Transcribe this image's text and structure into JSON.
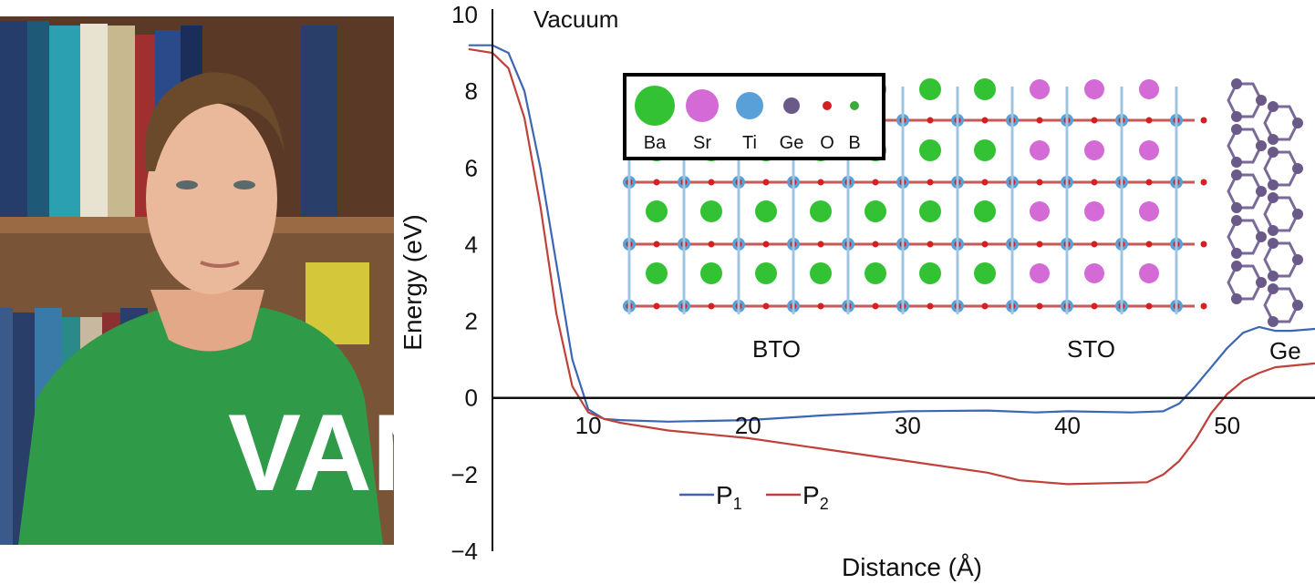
{
  "photo": {
    "shirt_lettering": "VAN"
  },
  "chart_data": {
    "type": "line",
    "title": "",
    "xlabel": "Distance (Å)",
    "ylabel": "Energy (eV)",
    "xlim": [
      0,
      55.5
    ],
    "ylim": [
      -4,
      10
    ],
    "xticks": [
      10,
      20,
      30,
      40,
      50
    ],
    "yticks": [
      -4,
      -2,
      0,
      2,
      4,
      6,
      8,
      10
    ],
    "ytick_labels": [
      "−4",
      "−2",
      "0",
      "2",
      "4",
      "6",
      "8",
      "10"
    ],
    "grid": false,
    "series": [
      {
        "name": "P1",
        "legend_main": "P",
        "legend_sub": "1",
        "color": "#3a66b4",
        "x": [
          2.5,
          4,
          5,
          6,
          7,
          8,
          9,
          10,
          11,
          12,
          15,
          20,
          25,
          30,
          35,
          38,
          40,
          44,
          46,
          47,
          48,
          49,
          50,
          51,
          52,
          53,
          54,
          55.5
        ],
        "y": [
          9.2,
          9.2,
          9.0,
          8.0,
          6.0,
          3.5,
          1.0,
          -0.3,
          -0.55,
          -0.58,
          -0.62,
          -0.58,
          -0.45,
          -0.35,
          -0.33,
          -0.38,
          -0.35,
          -0.38,
          -0.35,
          -0.15,
          0.3,
          0.8,
          1.3,
          1.7,
          1.85,
          1.75,
          1.75,
          1.8
        ]
      },
      {
        "name": "P2",
        "legend_main": "P",
        "legend_sub": "2",
        "color": "#c0403a",
        "x": [
          2.5,
          4,
          5,
          6,
          7,
          8,
          9,
          10,
          11,
          12,
          15,
          20,
          25,
          30,
          35,
          37,
          40,
          45,
          46,
          47,
          48,
          49,
          50,
          51,
          52,
          53,
          55.5
        ],
        "y": [
          9.1,
          9.0,
          8.6,
          7.3,
          5.0,
          2.2,
          0.3,
          -0.38,
          -0.55,
          -0.65,
          -0.85,
          -1.05,
          -1.35,
          -1.65,
          -1.95,
          -2.15,
          -2.25,
          -2.2,
          -2.0,
          -1.65,
          -1.1,
          -0.4,
          0.1,
          0.45,
          0.65,
          0.8,
          0.9
        ]
      }
    ],
    "annotations": [
      {
        "name": "vacuum-label",
        "text": "Vacuum"
      },
      {
        "name": "bto-label",
        "text": "BTO"
      },
      {
        "name": "sto-label",
        "text": "STO"
      },
      {
        "name": "ge-label",
        "text": "Ge"
      }
    ],
    "atom_legend": {
      "items": [
        {
          "label": "Ba",
          "color": "#33c233"
        },
        {
          "label": "Sr",
          "color": "#d46ad6"
        },
        {
          "label": "Ti",
          "color": "#5aa0d8"
        },
        {
          "label": "Ge",
          "color": "#6a5a8a"
        },
        {
          "label": "O",
          "color": "#d42020"
        },
        {
          "label": "B",
          "color": "#3aaa3a"
        }
      ]
    }
  }
}
